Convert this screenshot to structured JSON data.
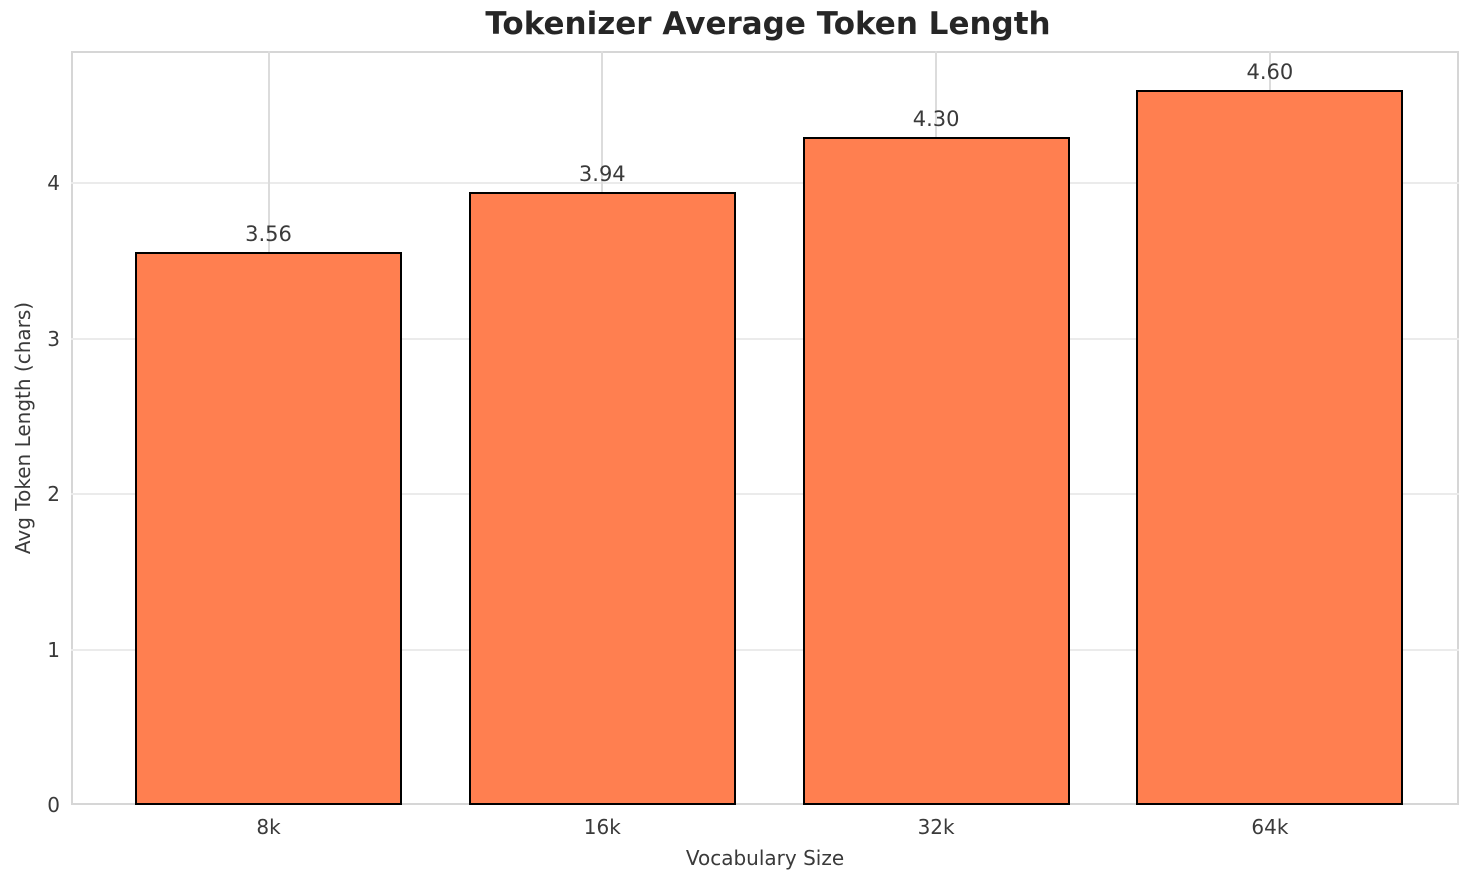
{
  "chart_data": {
    "type": "bar",
    "title": "Tokenizer Average Token Length",
    "xlabel": "Vocabulary Size",
    "ylabel": "Avg Token Length (chars)",
    "categories": [
      "8k",
      "16k",
      "32k",
      "64k"
    ],
    "values": [
      3.56,
      3.94,
      4.3,
      4.6
    ],
    "value_labels": [
      "3.56",
      "3.94",
      "4.30",
      "4.60"
    ],
    "yticks": [
      0,
      1,
      2,
      3,
      4
    ],
    "ylim": [
      0,
      4.85
    ],
    "grid": "both",
    "legend": "none",
    "colors": {
      "bar_fill": "#FF7F50",
      "bar_edge": "#000000"
    }
  }
}
